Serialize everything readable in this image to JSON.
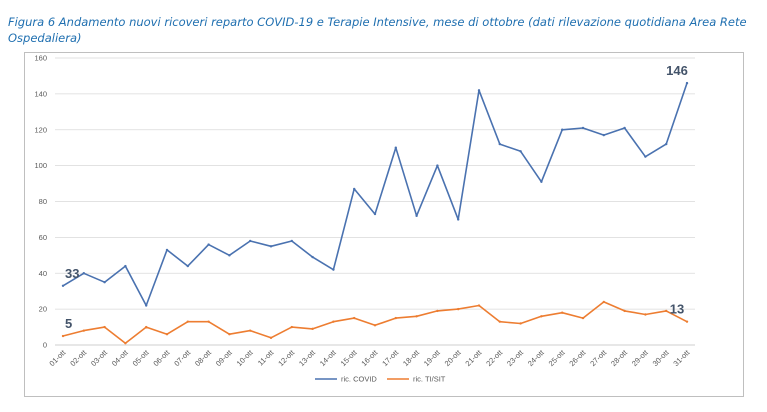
{
  "caption": "Figura 6 Andamento nuovi ricoveri reparto COVID-19 e Terapie Intensive, mese di ottobre (dati rilevazione quotidiana Area Rete Ospedaliera)",
  "chart_data": {
    "type": "line",
    "categories": [
      "01-ott",
      "02-ott",
      "03-ott",
      "04-ott",
      "05-ott",
      "06-ott",
      "07-ott",
      "08-ott",
      "09-ott",
      "10-ott",
      "11-ott",
      "12-ott",
      "13-ott",
      "14-ott",
      "15-ott",
      "16-ott",
      "17-ott",
      "18-ott",
      "19-ott",
      "20-ott",
      "21-ott",
      "22-ott",
      "23-ott",
      "24-ott",
      "25-ott",
      "26-ott",
      "27-ott",
      "28-ott",
      "29-ott",
      "30-ott",
      "31-ott"
    ],
    "ylim": [
      0,
      160
    ],
    "yticks": [
      0,
      20,
      40,
      60,
      80,
      100,
      120,
      140,
      160
    ],
    "grid": true,
    "legend": "bottom",
    "series": [
      {
        "name": "ric. COVID",
        "color": "#4a72b0",
        "values": [
          33,
          40,
          35,
          44,
          22,
          53,
          44,
          56,
          50,
          58,
          55,
          58,
          49,
          42,
          87,
          73,
          110,
          72,
          100,
          70,
          142,
          112,
          108,
          91,
          120,
          121,
          117,
          121,
          105,
          112,
          146
        ],
        "labels": [
          {
            "index": 0,
            "text": "33"
          },
          {
            "index": 30,
            "text": "146"
          }
        ]
      },
      {
        "name": "ric. TI/SIT",
        "color": "#ed7d31",
        "values": [
          5,
          8,
          10,
          1,
          10,
          6,
          13,
          13,
          6,
          8,
          4,
          10,
          9,
          13,
          15,
          11,
          15,
          16,
          19,
          20,
          22,
          13,
          12,
          16,
          18,
          15,
          24,
          19,
          17,
          19,
          13
        ],
        "labels": [
          {
            "index": 0,
            "text": "5"
          },
          {
            "index": 30,
            "text": "13"
          }
        ]
      }
    ]
  }
}
